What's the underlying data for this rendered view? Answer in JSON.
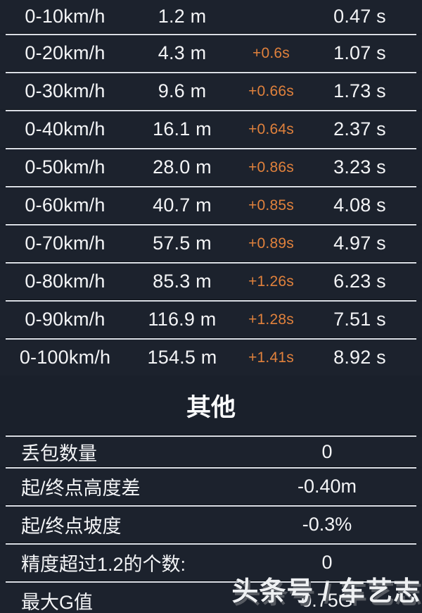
{
  "theme": {
    "background": "#1a202b",
    "row_background": "#1c222d",
    "separator_light": "#d9dde4",
    "separator_dark": "#0c1016",
    "text_color": "#f3f4f6",
    "delta_color": "#e0813c"
  },
  "speed_table": {
    "rows": [
      {
        "range": "0-10km/h",
        "distance": "1.2 m",
        "delta": "",
        "time": "0.47 s"
      },
      {
        "range": "0-20km/h",
        "distance": "4.3 m",
        "delta": "+0.6s",
        "time": "1.07 s"
      },
      {
        "range": "0-30km/h",
        "distance": "9.6 m",
        "delta": "+0.66s",
        "time": "1.73 s"
      },
      {
        "range": "0-40km/h",
        "distance": "16.1 m",
        "delta": "+0.64s",
        "time": "2.37 s"
      },
      {
        "range": "0-50km/h",
        "distance": "28.0 m",
        "delta": "+0.86s",
        "time": "3.23 s"
      },
      {
        "range": "0-60km/h",
        "distance": "40.7 m",
        "delta": "+0.85s",
        "time": "4.08 s"
      },
      {
        "range": "0-70km/h",
        "distance": "57.5 m",
        "delta": "+0.89s",
        "time": "4.97 s"
      },
      {
        "range": "0-80km/h",
        "distance": "85.3 m",
        "delta": "+1.26s",
        "time": "6.23 s"
      },
      {
        "range": "0-90km/h",
        "distance": "116.9 m",
        "delta": "+1.28s",
        "time": "7.51 s"
      },
      {
        "range": "0-100km/h",
        "distance": "154.5 m",
        "delta": "+1.41s",
        "time": "8.92 s"
      }
    ]
  },
  "other_section": {
    "title": "其他",
    "rows": [
      {
        "label": "丢包数量",
        "value": "0"
      },
      {
        "label": "起/终点高度差",
        "value": "-0.40m"
      },
      {
        "label": "起/终点坡度",
        "value": "-0.3%"
      },
      {
        "label": "精度超过1.2的个数:",
        "value": "0"
      },
      {
        "label": "最大G值",
        "value": "0.75G"
      }
    ]
  },
  "watermark": {
    "text": "头条号 / 车艺志"
  }
}
